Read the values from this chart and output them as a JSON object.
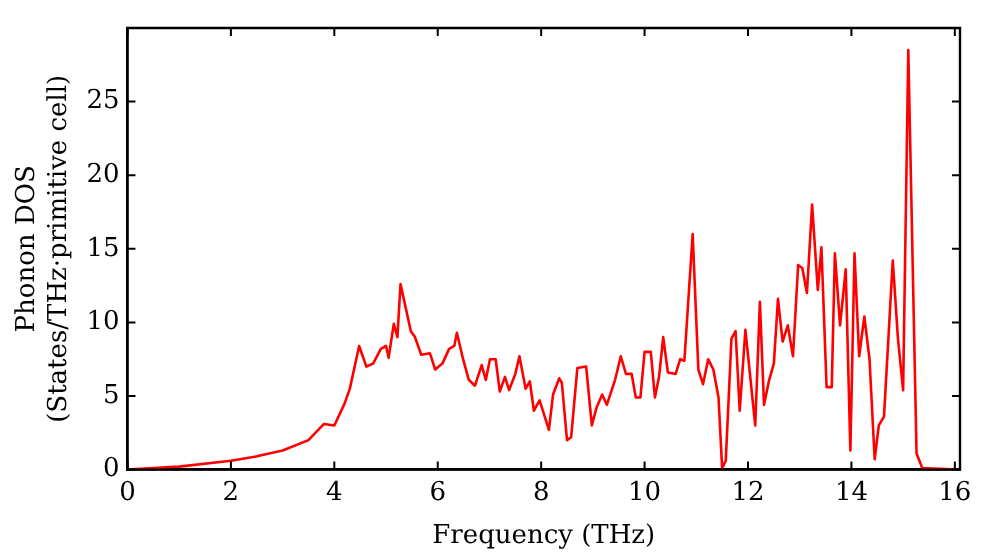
{
  "chart_data": {
    "type": "line",
    "xlabel": "Frequency (THz)",
    "ylabel": "Phonon DOS\n(States/THz·primitive cell)",
    "xlim": [
      0,
      16.1
    ],
    "ylim": [
      0,
      30
    ],
    "xticks": [
      0,
      2,
      4,
      6,
      8,
      10,
      12,
      14,
      16
    ],
    "yticks": [
      0,
      5,
      10,
      15,
      20,
      25
    ],
    "grid": false,
    "legend": false,
    "marker": "none",
    "line_style": "solid",
    "x": [
      0,
      1,
      2,
      2.5,
      3,
      3.5,
      3.8,
      4.0,
      4.2,
      4.3,
      4.48,
      4.62,
      4.75,
      4.9,
      5.0,
      5.05,
      5.15,
      5.22,
      5.28,
      5.48,
      5.56,
      5.68,
      5.85,
      5.95,
      6.09,
      6.22,
      6.32,
      6.37,
      6.49,
      6.6,
      6.72,
      6.85,
      6.93,
      7.01,
      7.12,
      7.2,
      7.3,
      7.38,
      7.5,
      7.58,
      7.7,
      7.78,
      7.86,
      7.97,
      8.15,
      8.23,
      8.35,
      8.4,
      8.5,
      8.58,
      8.7,
      8.87,
      8.98,
      9.07,
      9.18,
      9.27,
      9.43,
      9.54,
      9.64,
      9.75,
      9.83,
      9.92,
      10.0,
      10.12,
      10.2,
      10.28,
      10.36,
      10.45,
      10.6,
      10.69,
      10.77,
      10.93,
      11.04,
      11.13,
      11.23,
      11.33,
      11.43,
      11.5,
      11.57,
      11.68,
      11.76,
      11.84,
      11.95,
      12.14,
      12.23,
      12.31,
      12.41,
      12.5,
      12.58,
      12.67,
      12.77,
      12.87,
      12.97,
      13.05,
      13.14,
      13.24,
      13.35,
      13.42,
      13.52,
      13.62,
      13.68,
      13.78,
      13.89,
      13.98,
      14.06,
      14.15,
      14.25,
      14.35,
      14.45,
      14.53,
      14.63,
      14.8,
      14.9,
      15.0,
      15.1,
      15.26,
      15.37,
      16.05
    ],
    "series": [
      {
        "color": "#ff0000",
        "values": [
          0,
          0.2,
          0.6,
          0.9,
          1.3,
          2.0,
          3.1,
          3.0,
          4.5,
          5.5,
          8.4,
          7.0,
          7.2,
          8.2,
          8.4,
          7.6,
          9.9,
          9.0,
          12.6,
          9.4,
          9.0,
          7.8,
          7.9,
          6.8,
          7.2,
          8.2,
          8.4,
          9.3,
          7.5,
          6.1,
          5.7,
          7.1,
          6.1,
          7.5,
          7.5,
          5.3,
          6.3,
          5.4,
          6.5,
          7.7,
          5.5,
          6.0,
          4.0,
          4.7,
          2.7,
          5.1,
          6.2,
          5.9,
          2.0,
          2.2,
          6.9,
          7.0,
          3.0,
          4.2,
          5.1,
          4.4,
          6.1,
          7.7,
          6.5,
          6.5,
          4.9,
          4.9,
          8.0,
          8.0,
          4.9,
          6.3,
          9.0,
          6.6,
          6.5,
          7.5,
          7.4,
          16.0,
          6.8,
          5.8,
          7.5,
          6.8,
          4.9,
          0.1,
          0.6,
          8.9,
          9.4,
          4.0,
          9.5,
          3.0,
          11.4,
          4.4,
          6.1,
          7.2,
          11.6,
          8.7,
          9.8,
          7.7,
          13.9,
          13.7,
          12.0,
          18.0,
          12.2,
          15.1,
          5.6,
          5.6,
          14.7,
          9.8,
          13.6,
          1.3,
          14.7,
          7.7,
          10.4,
          7.5,
          0.7,
          3.0,
          3.6,
          14.2,
          8.9,
          5.4,
          28.5,
          1.1,
          0.1,
          0
        ]
      }
    ]
  }
}
